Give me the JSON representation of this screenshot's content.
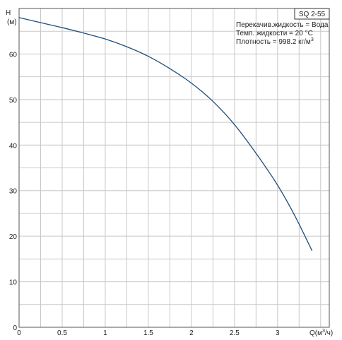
{
  "chart_data": {
    "type": "line",
    "model": "SQ 2-55",
    "info_lines": [
      {
        "text": "Перекачив.жидкость = Вода",
        "sup": ""
      },
      {
        "text": "Темп. жидкости = 20 °C",
        "sup": ""
      },
      {
        "text": "Плотность = 998.2 кг/м",
        "sup": "3"
      }
    ],
    "ylabel": "H",
    "yunit": "(м)",
    "xlabel_prefix": "Q(м",
    "xlabel_sup": "3",
    "xlabel_suffix": "/ч)",
    "xlim": [
      0,
      3.6
    ],
    "ylim": [
      0,
      70
    ],
    "x_major_ticks": [
      0,
      0.5,
      1,
      1.5,
      2,
      2.5,
      3
    ],
    "x_tick_labels": [
      "0",
      "0.5",
      "1",
      "1.5",
      "2",
      "2.5",
      "3"
    ],
    "y_major_ticks": [
      0,
      10,
      20,
      30,
      40,
      50,
      60
    ],
    "y_tick_labels": [
      "0",
      "10",
      "20",
      "30",
      "40",
      "50",
      "60"
    ],
    "x_minor_step": 0.25,
    "y_minor_step": 5,
    "grid": true,
    "series": [
      {
        "color": "#1f4e79",
        "x": [
          0,
          0.25,
          0.5,
          0.75,
          1.0,
          1.25,
          1.5,
          1.75,
          2.0,
          2.25,
          2.5,
          2.75,
          3.0,
          3.2,
          3.4
        ],
        "y": [
          68.0,
          66.9,
          65.8,
          64.6,
          63.3,
          61.6,
          59.5,
          56.8,
          53.6,
          49.6,
          44.5,
          38.2,
          31.2,
          24.5,
          16.8
        ]
      }
    ]
  }
}
